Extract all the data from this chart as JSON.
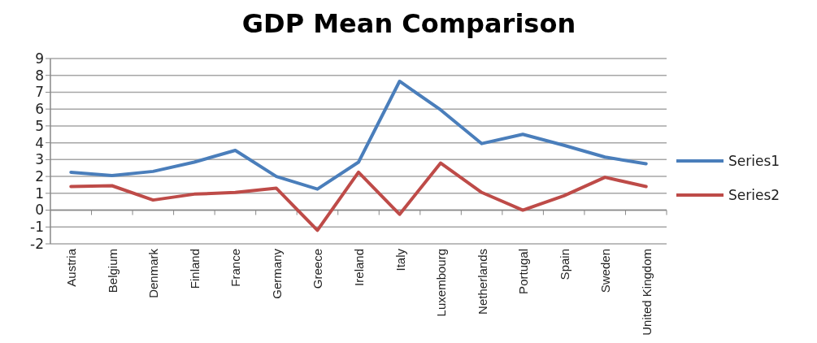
{
  "chart_data": {
    "type": "line",
    "title": "GDP Mean Comparison",
    "categories": [
      "Austria",
      "Belgium",
      "Denmark",
      "Finland",
      "France",
      "Germany",
      "Greece",
      "Ireland",
      "Italy",
      "Luxembourg",
      "Netherlands",
      "Portugal",
      "Spain",
      "Sweden",
      "United Kingdom"
    ],
    "series": [
      {
        "name": "Series1",
        "color": "#4a7ebb",
        "values": [
          2.25,
          2.05,
          2.3,
          2.85,
          3.55,
          2.0,
          1.25,
          2.85,
          7.65,
          5.95,
          3.95,
          4.5,
          3.85,
          3.15,
          2.75
        ]
      },
      {
        "name": "Series2",
        "color": "#be4b48",
        "values": [
          1.4,
          1.45,
          0.6,
          0.95,
          1.05,
          1.3,
          -1.2,
          2.25,
          -0.25,
          2.8,
          1.05,
          0.0,
          0.85,
          1.95,
          1.4
        ]
      }
    ],
    "ylim": [
      -2,
      9
    ],
    "yticks": [
      -2,
      -1,
      0,
      1,
      2,
      3,
      4,
      5,
      6,
      7,
      8,
      9
    ],
    "grid": "y",
    "legend": "right",
    "marker": "none",
    "line_style": "solid"
  }
}
